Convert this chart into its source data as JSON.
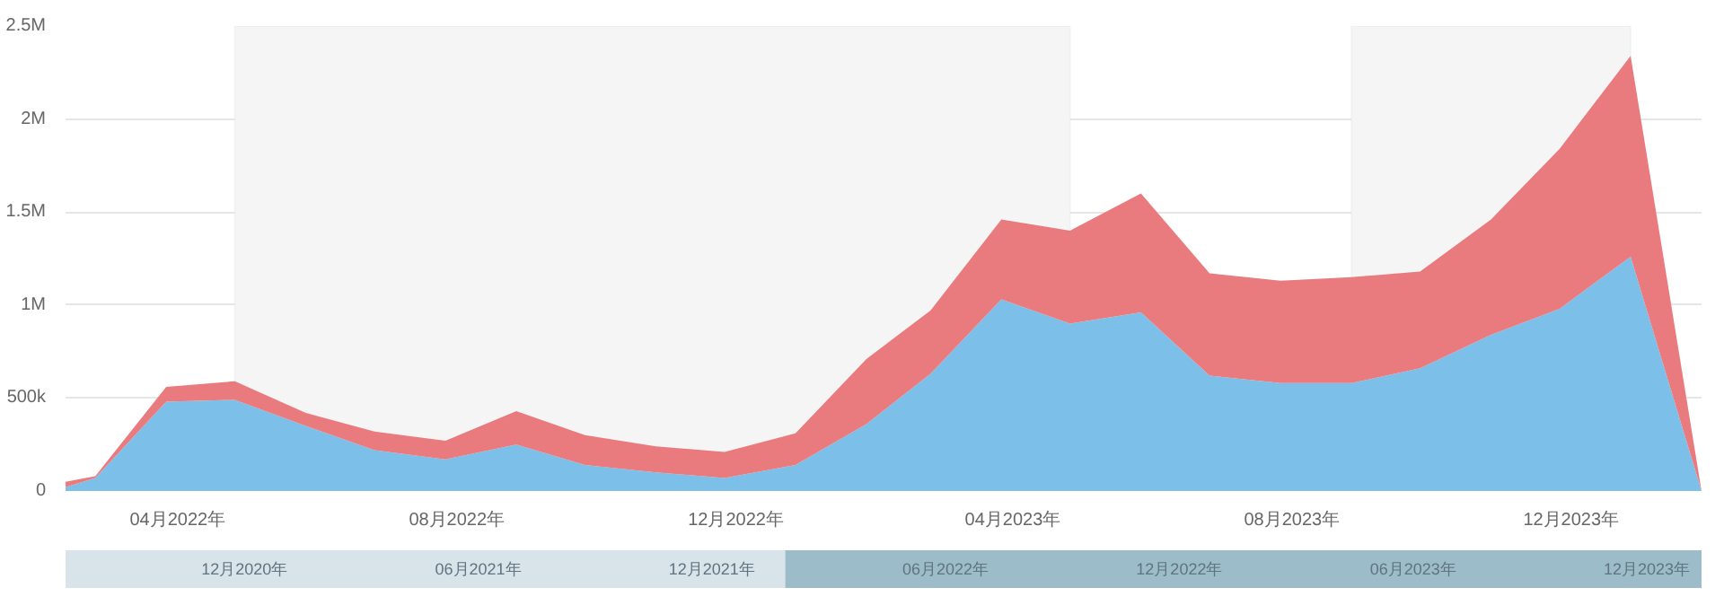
{
  "chart_data": [
    {
      "type": "area",
      "stacked": true,
      "x": [
        "2022-02-16",
        "2022-03",
        "2022-04",
        "2022-05",
        "2022-06",
        "2022-07",
        "2022-08",
        "2022-09",
        "2022-10",
        "2022-11",
        "2022-12",
        "2023-01",
        "2023-02",
        "2023-03",
        "2023-04",
        "2023-05",
        "2023-06",
        "2023-07",
        "2023-08",
        "2023-09",
        "2023-10",
        "2023-11",
        "2023-12",
        "2024-01",
        "2024-02"
      ],
      "series": [
        {
          "color": "#7cc0ea",
          "values": [
            20000,
            70000,
            480000,
            490000,
            350000,
            220000,
            170000,
            250000,
            140000,
            100000,
            70000,
            140000,
            360000,
            630000,
            1030000,
            900000,
            960000,
            620000,
            580000,
            580000,
            660000,
            840000,
            980000,
            1260000,
            0
          ]
        },
        {
          "color": "#e97b7e",
          "values": [
            30000,
            10000,
            80000,
            100000,
            70000,
            100000,
            100000,
            180000,
            160000,
            140000,
            140000,
            170000,
            350000,
            340000,
            430000,
            500000,
            640000,
            550000,
            550000,
            570000,
            520000,
            620000,
            860000,
            1080000,
            0
          ]
        }
      ],
      "xlim": [
        "2022-02-16",
        "2024-02"
      ],
      "xticks": [
        {
          "value": "2022-04-06",
          "label": "04月2022年"
        },
        {
          "value": "2022-08-06",
          "label": "08月2022年"
        },
        {
          "value": "2022-12-06",
          "label": "12月2022年"
        },
        {
          "value": "2023-04-06",
          "label": "04月2023年"
        },
        {
          "value": "2023-08-06",
          "label": "08月2023年"
        },
        {
          "value": "2023-12-06",
          "label": "12月2023年"
        }
      ],
      "ylim": [
        0,
        2500000
      ],
      "yticks": [
        {
          "value": 0,
          "label": "0"
        },
        {
          "value": 500000,
          "label": "500k"
        },
        {
          "value": 1000000,
          "label": "1M"
        },
        {
          "value": 1500000,
          "label": "1.5M"
        },
        {
          "value": 2000000,
          "label": "2M"
        },
        {
          "value": 2500000,
          "label": "2.5M"
        }
      ],
      "grid": "y",
      "bands": [
        {
          "axis": "x",
          "from": "2022-05",
          "to": "2023-05",
          "color": "#f5f5f5"
        },
        {
          "axis": "x",
          "from": "2023-09",
          "to": "2024-01",
          "color": "#f5f5f5"
        }
      ]
    },
    {
      "type": "other",
      "annotations": [
        "12月2020年",
        "06月2021年",
        "12月2021年",
        "06月2022年",
        "12月2022年",
        "06月2023年",
        "12月2023年"
      ]
    }
  ]
}
